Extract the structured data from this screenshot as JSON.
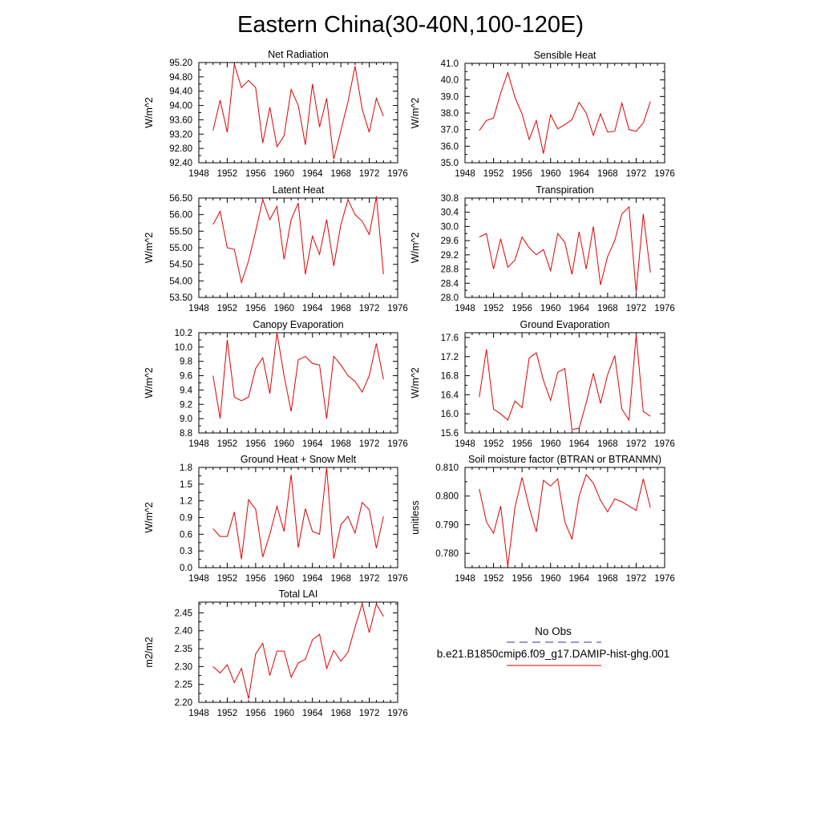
{
  "title": "Eastern China(30-40N,100-120E)",
  "colors": {
    "model": "#e00000",
    "obs": "#3030a0",
    "axis": "#000000"
  },
  "chart_data": [
    {
      "type": "line",
      "title": "Net Radiation",
      "ylabel": "W/m^2",
      "xlim": [
        1948,
        1976
      ],
      "xticks": [
        "1948",
        "1952",
        "1956",
        "1960",
        "1964",
        "1968",
        "1972",
        "1976"
      ],
      "ylim": [
        92.4,
        95.2
      ],
      "yticks": [
        "92.40",
        "92.80",
        "93.20",
        "93.60",
        "94.00",
        "94.40",
        "94.80",
        "95.20"
      ],
      "x": [
        1950,
        1951,
        1952,
        1953,
        1954,
        1955,
        1956,
        1957,
        1958,
        1959,
        1960,
        1961,
        1962,
        1963,
        1964,
        1965,
        1966,
        1967,
        1968,
        1969,
        1970,
        1971,
        1972,
        1973,
        1974
      ],
      "series": [
        {
          "values": [
            93.3,
            94.15,
            93.25,
            95.15,
            94.5,
            94.7,
            94.5,
            92.95,
            93.95,
            92.85,
            93.15,
            94.45,
            94.0,
            92.9,
            94.6,
            93.4,
            94.2,
            92.5,
            93.3,
            94.1,
            95.1,
            93.9,
            93.25,
            94.2,
            93.7
          ]
        }
      ]
    },
    {
      "type": "line",
      "title": "Sensible Heat",
      "ylabel": "W/m^2",
      "xlim": [
        1948,
        1976
      ],
      "xticks": [
        "1948",
        "1952",
        "1956",
        "1960",
        "1964",
        "1968",
        "1972",
        "1976"
      ],
      "ylim": [
        35.0,
        41.0
      ],
      "yticks": [
        "35.0",
        "36.0",
        "37.0",
        "38.0",
        "39.0",
        "40.0",
        "41.0"
      ],
      "x": [
        1950,
        1951,
        1952,
        1953,
        1954,
        1955,
        1956,
        1957,
        1958,
        1959,
        1960,
        1961,
        1962,
        1963,
        1964,
        1965,
        1966,
        1967,
        1968,
        1969,
        1970,
        1971,
        1972,
        1973,
        1974
      ],
      "series": [
        {
          "values": [
            36.95,
            37.55,
            37.7,
            39.2,
            40.45,
            38.95,
            37.95,
            36.4,
            37.55,
            35.55,
            37.9,
            37.05,
            37.3,
            37.6,
            38.65,
            38.0,
            36.65,
            37.95,
            36.85,
            36.9,
            38.6,
            37.0,
            36.9,
            37.4,
            38.7
          ]
        }
      ]
    },
    {
      "type": "line",
      "title": "Latent Heat",
      "ylabel": "W/m^2",
      "xlim": [
        1948,
        1976
      ],
      "xticks": [
        "1948",
        "1952",
        "1956",
        "1960",
        "1964",
        "1968",
        "1972",
        "1976"
      ],
      "ylim": [
        53.5,
        56.5
      ],
      "yticks": [
        "53.50",
        "54.00",
        "54.50",
        "55.00",
        "55.50",
        "56.00",
        "56.50"
      ],
      "x": [
        1950,
        1951,
        1952,
        1953,
        1954,
        1955,
        1956,
        1957,
        1958,
        1959,
        1960,
        1961,
        1962,
        1963,
        1964,
        1965,
        1966,
        1967,
        1968,
        1969,
        1970,
        1971,
        1972,
        1973,
        1974
      ],
      "series": [
        {
          "values": [
            55.7,
            56.1,
            55.0,
            54.95,
            53.95,
            54.6,
            55.5,
            56.45,
            55.85,
            56.25,
            54.65,
            55.85,
            56.35,
            54.2,
            55.35,
            54.8,
            55.85,
            54.45,
            55.7,
            56.45,
            56.0,
            55.8,
            55.4,
            56.55,
            54.2
          ]
        }
      ]
    },
    {
      "type": "line",
      "title": "Transpiration",
      "ylabel": "W/m^2",
      "xlim": [
        1948,
        1976
      ],
      "xticks": [
        "1948",
        "1952",
        "1956",
        "1960",
        "1964",
        "1968",
        "1972",
        "1976"
      ],
      "ylim": [
        28.0,
        30.8
      ],
      "yticks": [
        "28.0",
        "28.4",
        "28.8",
        "29.2",
        "29.6",
        "30.0",
        "30.4",
        "30.8"
      ],
      "x": [
        1950,
        1951,
        1952,
        1953,
        1954,
        1955,
        1956,
        1957,
        1958,
        1959,
        1960,
        1961,
        1962,
        1963,
        1964,
        1965,
        1966,
        1967,
        1968,
        1969,
        1970,
        1971,
        1972,
        1973,
        1974
      ],
      "series": [
        {
          "values": [
            29.7,
            29.8,
            28.8,
            29.65,
            28.85,
            29.05,
            29.7,
            29.4,
            29.2,
            29.35,
            28.75,
            29.8,
            29.55,
            28.65,
            29.85,
            28.8,
            30.0,
            28.35,
            29.15,
            29.6,
            30.35,
            30.55,
            28.15,
            30.35,
            28.7
          ]
        }
      ]
    },
    {
      "type": "line",
      "title": "Canopy Evaporation",
      "ylabel": "W/m^2",
      "xlim": [
        1948,
        1976
      ],
      "xticks": [
        "1948",
        "1952",
        "1956",
        "1960",
        "1964",
        "1968",
        "1972",
        "1976"
      ],
      "ylim": [
        8.8,
        10.2
      ],
      "yticks": [
        "8.8",
        "9.0",
        "9.2",
        "9.4",
        "9.6",
        "9.8",
        "10.0",
        "10.2"
      ],
      "x": [
        1950,
        1951,
        1952,
        1953,
        1954,
        1955,
        1956,
        1957,
        1958,
        1959,
        1960,
        1961,
        1962,
        1963,
        1964,
        1965,
        1966,
        1967,
        1968,
        1969,
        1970,
        1971,
        1972,
        1973,
        1974
      ],
      "series": [
        {
          "values": [
            9.6,
            9.0,
            10.1,
            9.3,
            9.25,
            9.3,
            9.7,
            9.85,
            9.35,
            10.2,
            9.6,
            9.1,
            9.82,
            9.87,
            9.77,
            9.75,
            9.0,
            9.87,
            9.75,
            9.6,
            9.52,
            9.37,
            9.6,
            10.05,
            9.55
          ]
        }
      ]
    },
    {
      "type": "line",
      "title": "Ground Evaporation",
      "ylabel": "W/m^2",
      "xlim": [
        1948,
        1976
      ],
      "xticks": [
        "1948",
        "1952",
        "1956",
        "1960",
        "1964",
        "1968",
        "1972",
        "1976"
      ],
      "ylim": [
        15.6,
        17.7
      ],
      "yticks": [
        "15.6",
        "16.0",
        "16.4",
        "16.8",
        "17.2",
        "17.6"
      ],
      "x": [
        1950,
        1951,
        1952,
        1953,
        1954,
        1955,
        1956,
        1957,
        1958,
        1959,
        1960,
        1961,
        1962,
        1963,
        1964,
        1965,
        1966,
        1967,
        1968,
        1969,
        1970,
        1971,
        1972,
        1973,
        1974
      ],
      "series": [
        {
          "values": [
            16.35,
            17.35,
            16.1,
            16.0,
            15.87,
            16.27,
            16.13,
            17.17,
            17.28,
            16.7,
            16.28,
            16.87,
            16.95,
            15.67,
            15.7,
            16.23,
            16.85,
            16.22,
            16.82,
            17.22,
            16.1,
            15.87,
            17.65,
            16.05,
            15.95
          ]
        }
      ]
    },
    {
      "type": "line",
      "title": "Ground Heat + Snow Melt",
      "ylabel": "W/m^2",
      "xlim": [
        1948,
        1976
      ],
      "xticks": [
        "1948",
        "1952",
        "1956",
        "1960",
        "1964",
        "1968",
        "1972",
        "1976"
      ],
      "ylim": [
        0.0,
        1.8
      ],
      "yticks": [
        "0.0",
        "0.3",
        "0.6",
        "0.9",
        "1.2",
        "1.5",
        "1.8"
      ],
      "x": [
        1950,
        1951,
        1952,
        1953,
        1954,
        1955,
        1956,
        1957,
        1958,
        1959,
        1960,
        1961,
        1962,
        1963,
        1964,
        1965,
        1966,
        1967,
        1968,
        1969,
        1970,
        1971,
        1972,
        1973,
        1974
      ],
      "series": [
        {
          "values": [
            0.7,
            0.56,
            0.56,
            1.0,
            0.15,
            1.22,
            1.05,
            0.19,
            0.6,
            1.1,
            0.65,
            1.67,
            0.36,
            1.06,
            0.65,
            0.6,
            1.8,
            0.16,
            0.77,
            0.92,
            0.62,
            1.17,
            1.04,
            0.35,
            0.92
          ]
        }
      ]
    },
    {
      "type": "line",
      "title": "Soil moisture factor (BTRAN or BTRANMN)",
      "ylabel": "unitless",
      "xlim": [
        1948,
        1976
      ],
      "xticks": [
        "1948",
        "1952",
        "1956",
        "1960",
        "1964",
        "1968",
        "1972",
        "1976"
      ],
      "ylim": [
        0.775,
        0.81
      ],
      "yticks": [
        "0.780",
        "0.790",
        "0.800",
        "0.810"
      ],
      "x": [
        1950,
        1951,
        1952,
        1953,
        1954,
        1955,
        1956,
        1957,
        1958,
        1959,
        1960,
        1961,
        1962,
        1963,
        1964,
        1965,
        1966,
        1967,
        1968,
        1969,
        1970,
        1971,
        1972,
        1973,
        1974
      ],
      "series": [
        {
          "values": [
            0.8025,
            0.791,
            0.787,
            0.7965,
            0.7755,
            0.796,
            0.8065,
            0.796,
            0.7875,
            0.8055,
            0.8035,
            0.806,
            0.791,
            0.785,
            0.8,
            0.8075,
            0.8045,
            0.7985,
            0.7945,
            0.799,
            0.798,
            0.7965,
            0.795,
            0.806,
            0.796
          ]
        }
      ]
    },
    {
      "type": "line",
      "title": "Total LAI",
      "ylabel": "m2/m2",
      "xlim": [
        1948,
        1976
      ],
      "xticks": [
        "1948",
        "1952",
        "1956",
        "1960",
        "1964",
        "1968",
        "1972",
        "1976"
      ],
      "ylim": [
        2.2,
        2.48
      ],
      "yticks": [
        "2.20",
        "2.25",
        "2.30",
        "2.35",
        "2.40",
        "2.45"
      ],
      "x": [
        1950,
        1951,
        1952,
        1953,
        1954,
        1955,
        1956,
        1957,
        1958,
        1959,
        1960,
        1961,
        1962,
        1963,
        1964,
        1965,
        1966,
        1967,
        1968,
        1969,
        1970,
        1971,
        1972,
        1973,
        1974
      ],
      "series": [
        {
          "values": [
            2.3,
            2.282,
            2.305,
            2.255,
            2.295,
            2.21,
            2.335,
            2.365,
            2.275,
            2.343,
            2.343,
            2.27,
            2.31,
            2.32,
            2.375,
            2.39,
            2.295,
            2.345,
            2.315,
            2.34,
            2.41,
            2.475,
            2.395,
            2.475,
            2.44
          ]
        }
      ]
    }
  ],
  "legend": {
    "items": [
      {
        "label": "No Obs",
        "style": "dashed",
        "color": "#3030a0"
      },
      {
        "label": "b.e21.B1850cmip6.f09_g17.DAMIP-hist-ghg.001",
        "style": "solid",
        "color": "#e00000"
      }
    ]
  }
}
